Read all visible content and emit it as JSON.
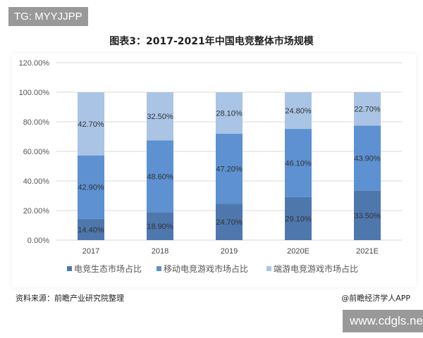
{
  "overlay": {
    "tg": "TG: MYYJJPP",
    "site": "www.cdgls.net"
  },
  "source": "资料来源：前瞻产业研究院整理",
  "credit": "@前瞻经济学人APP",
  "chart_data": {
    "type": "bar",
    "stacked": true,
    "title": "图表3：2017-2021年中国电竞整体市场规模",
    "categories": [
      "2017",
      "2018",
      "2019",
      "2020E",
      "2021E"
    ],
    "ylim": [
      0,
      120
    ],
    "yticks": [
      "0.00%",
      "20.00%",
      "40.00%",
      "60.00%",
      "80.00%",
      "100.00%",
      "120.00%"
    ],
    "grid": true,
    "legend": "bottom",
    "series": [
      {
        "name": "电竞生态市场占比",
        "color": "#4e77ad",
        "values": [
          14.4,
          18.9,
          24.7,
          29.1,
          33.5
        ],
        "labels": [
          "14.40%",
          "18.90%",
          "24.70%",
          "29.10%",
          "33.50%"
        ]
      },
      {
        "name": "移动电竞游戏市场占比",
        "color": "#5d91d1",
        "values": [
          42.9,
          48.6,
          47.2,
          46.1,
          43.9
        ],
        "labels": [
          "42.90%",
          "48.60%",
          "47.20%",
          "46.10%",
          "43.90%"
        ]
      },
      {
        "name": "端游电竞游戏市场占比",
        "color": "#aac4e6",
        "values": [
          42.7,
          32.5,
          28.1,
          24.8,
          22.7
        ],
        "labels": [
          "42.70%",
          "32.50%",
          "28.10%",
          "24.80%",
          "22.70%"
        ]
      }
    ]
  }
}
